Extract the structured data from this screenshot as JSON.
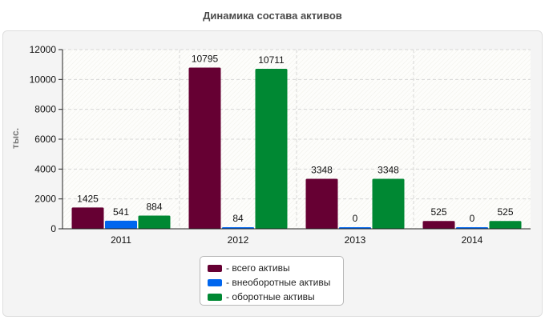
{
  "title": "Динамика состава активов",
  "chart_data": {
    "type": "bar",
    "categories": [
      "2011",
      "2012",
      "2013",
      "2014"
    ],
    "series": [
      {
        "name": "- всего активы",
        "color": "#660033",
        "values": [
          1425,
          10795,
          3348,
          525
        ],
        "labels": [
          "1425",
          "10795",
          "3348",
          "525"
        ]
      },
      {
        "name": "- внеоборотные активы",
        "color": "#0066ee",
        "values": [
          541,
          84,
          0,
          0
        ],
        "labels": [
          "541",
          "84",
          "0",
          "0"
        ]
      },
      {
        "name": "- оборотные активы",
        "color": "#008833",
        "values": [
          884,
          10711,
          3348,
          525
        ],
        "labels": [
          "884",
          "10711",
          "3348",
          "525"
        ]
      }
    ],
    "ylabel": "тыс.",
    "ylim": [
      0,
      12000
    ],
    "yticks": [
      0,
      2000,
      4000,
      6000,
      8000,
      10000,
      12000
    ],
    "ytick_labels": [
      "0",
      "2000",
      "4000",
      "6000",
      "8000",
      "10000",
      "12000"
    ],
    "grid": true,
    "legend": "bottom-center"
  }
}
